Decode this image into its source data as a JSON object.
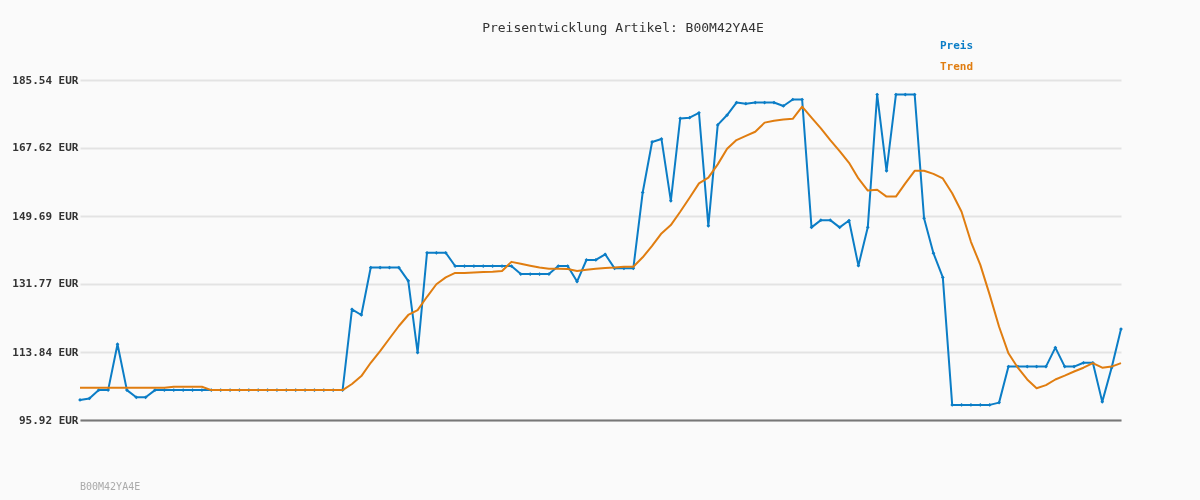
{
  "chart_data": {
    "type": "line",
    "title": "Preisentwicklung Artikel: B00M42YA4E",
    "annotations": [
      "B00M42YA4E"
    ],
    "categories": [
      null,
      null,
      null,
      null,
      null,
      null,
      null,
      null,
      null,
      null,
      null,
      null,
      null,
      null,
      null,
      null,
      null,
      null,
      null,
      null,
      null,
      null,
      null,
      null,
      null,
      null,
      null,
      null,
      null,
      null,
      null,
      null,
      null,
      null,
      null,
      null,
      null,
      null,
      null,
      null,
      null,
      null,
      null,
      null,
      null,
      null,
      null,
      null,
      null,
      null,
      null,
      null,
      null,
      null,
      null,
      null,
      null,
      null,
      null,
      null,
      null,
      null,
      null,
      null,
      null,
      null,
      null,
      null,
      null,
      null,
      null,
      null,
      null,
      null,
      null,
      null,
      null,
      null,
      null,
      null,
      null,
      null,
      null,
      null,
      null,
      null,
      null,
      null,
      null,
      null,
      null,
      null,
      null,
      null,
      null,
      null,
      null,
      null,
      null,
      null,
      null,
      null,
      null,
      null,
      null,
      null,
      null,
      null,
      null,
      null,
      null,
      null
    ],
    "series": [
      {
        "name": "Preis",
        "color": "#0b7dc6",
        "marker": "diamond",
        "values": [
          101.2,
          101.6,
          103.8,
          103.8,
          115.9,
          103.8,
          101.9,
          101.9,
          103.8,
          103.8,
          103.8,
          103.8,
          103.8,
          103.8,
          103.8,
          103.8,
          103.8,
          103.8,
          103.8,
          103.8,
          103.8,
          103.8,
          103.8,
          103.8,
          103.8,
          103.8,
          103.8,
          103.8,
          103.8,
          125.1,
          123.6,
          136.1,
          136.1,
          136.1,
          136.1,
          132.6,
          113.7,
          140.0,
          140.0,
          140.0,
          136.5,
          136.5,
          136.5,
          136.5,
          136.5,
          136.5,
          136.5,
          134.4,
          134.4,
          134.4,
          134.4,
          136.5,
          136.5,
          132.4,
          138.1,
          138.1,
          139.6,
          135.9,
          135.9,
          135.9,
          155.9,
          169.2,
          170.0,
          153.7,
          175.4,
          175.6,
          176.9,
          147.1,
          173.7,
          176.3,
          179.6,
          179.3,
          179.6,
          179.6,
          179.6,
          178.7,
          180.4,
          180.4,
          146.7,
          148.6,
          148.6,
          146.7,
          148.5,
          136.6,
          146.7,
          181.7,
          161.6,
          181.7,
          181.7,
          181.7,
          149.1,
          139.9,
          133.5,
          99.9,
          99.9,
          99.9,
          99.9,
          99.9,
          100.5,
          110.0,
          110.0,
          110.0,
          110.0,
          110.0,
          115.0,
          110.0,
          110.0,
          111.0,
          111.0,
          100.7,
          109.7,
          119.9
        ]
      },
      {
        "name": "Trend",
        "color": "#e07d10",
        "marker": "none",
        "values": [
          104.4,
          104.4,
          104.4,
          104.4,
          104.4,
          104.4,
          104.4,
          104.4,
          104.4,
          104.4,
          104.7,
          104.7,
          104.7,
          104.7,
          103.8,
          103.8,
          103.8,
          103.8,
          103.8,
          103.8,
          103.8,
          103.8,
          103.8,
          103.8,
          103.8,
          103.8,
          103.8,
          103.8,
          103.8,
          105.4,
          107.5,
          111.0,
          114.1,
          117.4,
          120.7,
          123.6,
          124.9,
          128.4,
          131.7,
          133.5,
          134.7,
          134.7,
          134.8,
          134.9,
          135.0,
          135.2,
          137.6,
          137.1,
          136.6,
          136.1,
          135.8,
          135.8,
          135.7,
          135.2,
          135.5,
          135.8,
          136.0,
          136.1,
          136.3,
          136.3,
          138.8,
          141.8,
          145.1,
          147.3,
          150.8,
          154.5,
          158.3,
          159.8,
          163.3,
          167.4,
          169.7,
          170.8,
          171.9,
          174.3,
          174.8,
          175.1,
          175.3,
          178.5,
          175.6,
          172.8,
          169.7,
          166.8,
          163.7,
          159.6,
          156.4,
          156.6,
          154.8,
          154.8,
          158.3,
          161.6,
          161.6,
          160.8,
          159.6,
          155.7,
          150.8,
          142.9,
          136.8,
          128.9,
          120.5,
          113.5,
          109.7,
          106.6,
          104.3,
          105.1,
          106.6,
          107.6,
          108.7,
          109.7,
          110.9,
          109.7,
          110.0,
          110.9
        ]
      }
    ],
    "ylim": [
      95.92,
      185.54
    ],
    "yticks": [
      {
        "value": 95.92,
        "label": "95.92 EUR"
      },
      {
        "value": 113.84,
        "label": "113.84 EUR"
      },
      {
        "value": 131.77,
        "label": "131.77 EUR"
      },
      {
        "value": 149.69,
        "label": "149.69 EUR"
      },
      {
        "value": 167.62,
        "label": "167.62 EUR"
      },
      {
        "value": 185.54,
        "label": "185.54 EUR"
      }
    ],
    "grid": "y",
    "legend": "top right",
    "line_style": "solid"
  }
}
